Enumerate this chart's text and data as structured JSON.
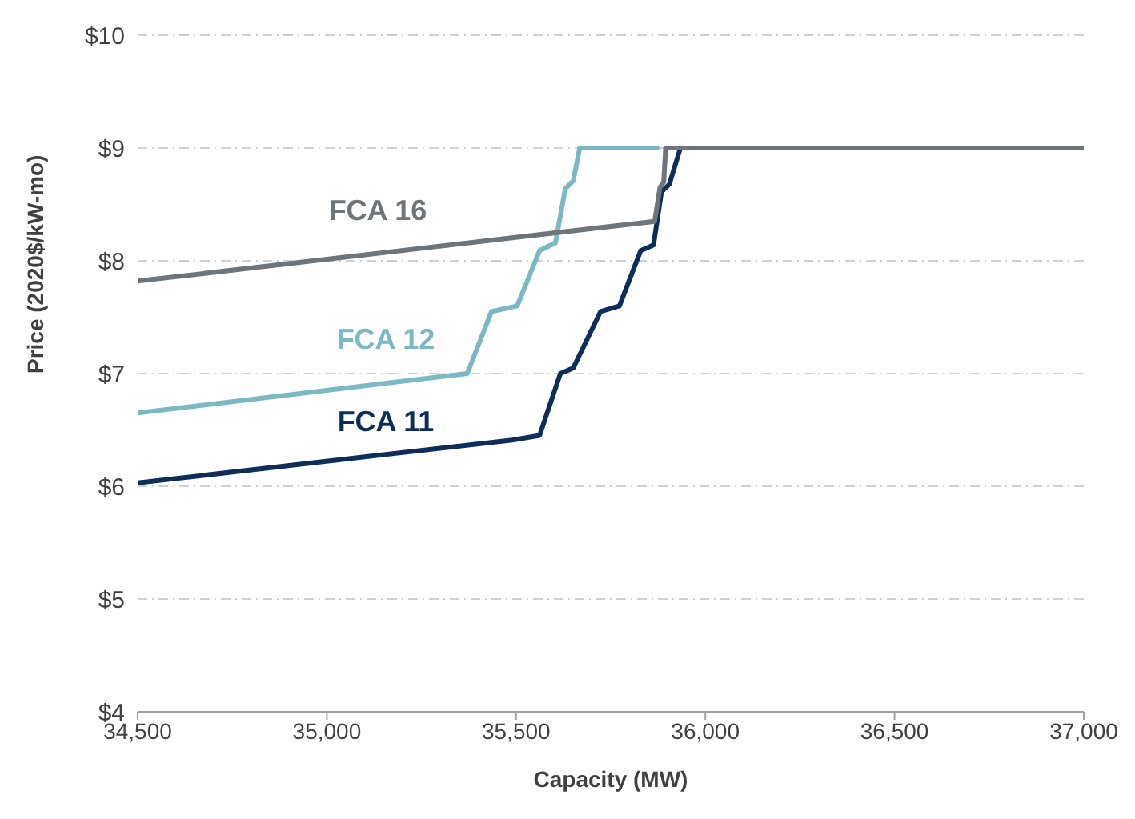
{
  "chart_data": {
    "type": "line",
    "xlabel": "Capacity (MW)",
    "ylabel": "Price (2020$/kW-mo)",
    "xlim": [
      34500,
      37000
    ],
    "xticks": [
      {
        "value": 34500,
        "label": "34,500"
      },
      {
        "value": 35000,
        "label": "35,000"
      },
      {
        "value": 35500,
        "label": "35,500"
      },
      {
        "value": 36000,
        "label": "36,000"
      },
      {
        "value": 36500,
        "label": "36,500"
      },
      {
        "value": 37000,
        "label": "37,000"
      }
    ],
    "ylim": [
      4,
      10
    ],
    "yticks": [
      {
        "value": 4,
        "label": "$4"
      },
      {
        "value": 5,
        "label": "$5"
      },
      {
        "value": 6,
        "label": "$6"
      },
      {
        "value": 7,
        "label": "$7"
      },
      {
        "value": 8,
        "label": "$8"
      },
      {
        "value": 9,
        "label": "$9"
      },
      {
        "value": 10,
        "label": "$10"
      }
    ],
    "grid": "y",
    "legend": false,
    "marker": "none",
    "line_style": "solid",
    "series": [
      {
        "name": "FCA 16",
        "color": "#6d747a",
        "x": [
          34500,
          35866,
          35880,
          35890,
          35895,
          37000
        ],
        "values": [
          7.82,
          8.35,
          8.65,
          8.7,
          9.0,
          9.0
        ]
      },
      {
        "name": "FCA 12",
        "color": "#7ab8c4",
        "x": [
          34500,
          35371,
          35435,
          35503,
          35562,
          35604,
          35630,
          35651,
          35668,
          35878
        ],
        "values": [
          6.65,
          7.0,
          7.55,
          7.6,
          8.09,
          8.16,
          8.64,
          8.71,
          9.0,
          9.0
        ]
      },
      {
        "name": "FCA 11",
        "color": "#0d2d5a",
        "x": [
          34500,
          35490,
          35562,
          35617,
          35651,
          35723,
          35773,
          35829,
          35863,
          35884,
          35905,
          35934
        ],
        "values": [
          6.03,
          6.41,
          6.45,
          7.0,
          7.05,
          7.55,
          7.6,
          8.09,
          8.14,
          8.61,
          8.68,
          9.0
        ]
      }
    ]
  }
}
